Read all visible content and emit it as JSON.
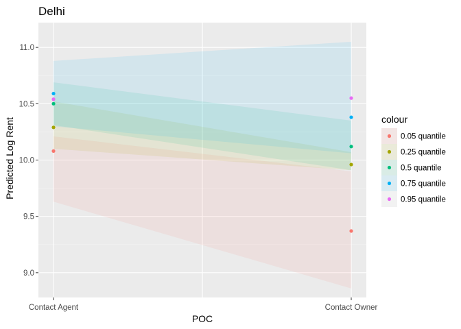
{
  "chart_data": {
    "type": "scatter",
    "title": "Delhi",
    "xlabel": "POC",
    "ylabel": "Predicted Log Rent",
    "categories": [
      "Contact Agent",
      "Contact Owner"
    ],
    "ylim": [
      8.78,
      11.22
    ],
    "yticks": [
      "9.0",
      "9.5",
      "10.0",
      "10.5",
      "11.0"
    ],
    "grid": true,
    "legend": {
      "title": "colour",
      "placement": "right"
    },
    "series": [
      {
        "name": "0.05 quantile",
        "color": "#F8766D",
        "values": [
          10.08,
          9.37
        ],
        "ribbon_low": [
          9.63,
          8.86
        ],
        "ribbon_high": [
          10.21,
          9.9
        ]
      },
      {
        "name": "0.25 quantile",
        "color": "#A3A500",
        "values": [
          10.29,
          9.96
        ],
        "ribbon_low": [
          10.1,
          9.91
        ],
        "ribbon_high": [
          10.52,
          10.07
        ]
      },
      {
        "name": "0.5 quantile",
        "color": "#00BF7D",
        "values": [
          10.5,
          10.12
        ],
        "ribbon_low": [
          10.31,
          9.91
        ],
        "ribbon_high": [
          10.69,
          10.35
        ]
      },
      {
        "name": "0.75 quantile",
        "color": "#00B0F6",
        "values": [
          10.59,
          10.38
        ],
        "ribbon_low": [
          10.3,
          10.06
        ],
        "ribbon_high": [
          10.88,
          11.05
        ]
      },
      {
        "name": "0.95 quantile",
        "color": "#E76BF3",
        "values": [
          10.54,
          10.55
        ]
      }
    ]
  }
}
